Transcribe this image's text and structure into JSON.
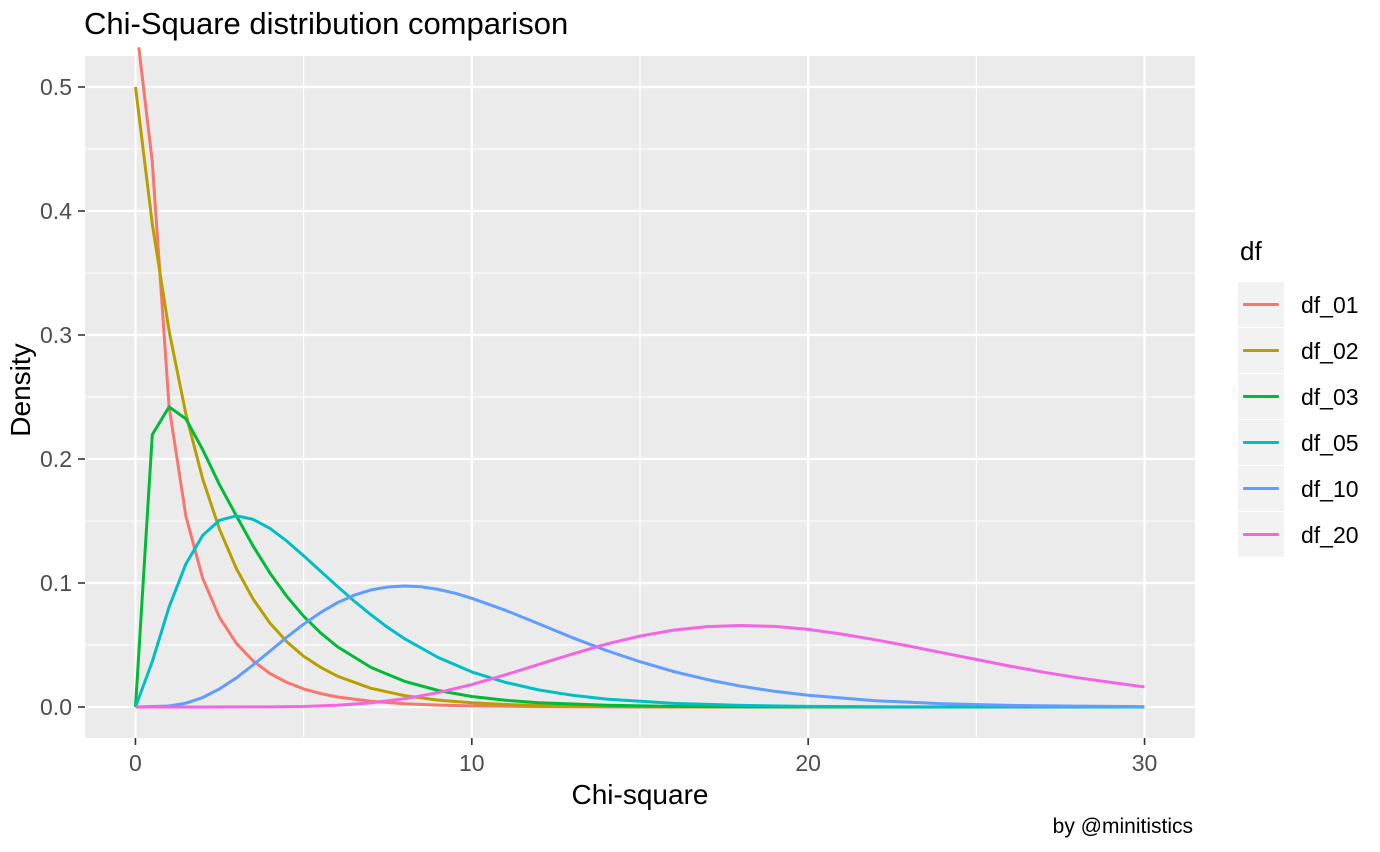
{
  "title": "Chi-Square distribution comparison",
  "caption": "by @minitistics",
  "axes": {
    "x_title": "Chi-square",
    "y_title": "Density"
  },
  "legend": {
    "title": "df",
    "items": [
      {
        "label": "df_01",
        "color": "#F8766D"
      },
      {
        "label": "df_02",
        "color": "#B79F00"
      },
      {
        "label": "df_03",
        "color": "#00BA38"
      },
      {
        "label": "df_05",
        "color": "#00BFC4"
      },
      {
        "label": "df_10",
        "color": "#619CFF"
      },
      {
        "label": "df_20",
        "color": "#F564E3"
      }
    ]
  },
  "style": {
    "panel_bg": "#EBEBEB",
    "grid_color": "#FFFFFF",
    "legend_key_bg": "#F2F2F2",
    "tick_label_color": "#4D4D4D",
    "tick_mark_color": "#333333",
    "text_color": "#000000"
  },
  "chart_data": {
    "type": "line",
    "title": "Chi-Square distribution comparison",
    "xlabel": "Chi-square",
    "ylabel": "Density",
    "xlim": [
      -1.5,
      31.5
    ],
    "ylim": [
      -0.025,
      0.525
    ],
    "grid": true,
    "legend_position": "right",
    "legend_title": "df",
    "x_ticks": [
      {
        "v": 0,
        "label": "0"
      },
      {
        "v": 10,
        "label": "10"
      },
      {
        "v": 20,
        "label": "20"
      },
      {
        "v": 30,
        "label": "30"
      }
    ],
    "y_ticks": [
      {
        "v": 0.0,
        "label": "0.0"
      },
      {
        "v": 0.1,
        "label": "0.1"
      },
      {
        "v": 0.2,
        "label": "0.2"
      },
      {
        "v": 0.3,
        "label": "0.3"
      },
      {
        "v": 0.4,
        "label": "0.4"
      },
      {
        "v": 0.5,
        "label": "0.5"
      }
    ],
    "x_minor": [
      5,
      15,
      25
    ],
    "y_minor": [
      0.05,
      0.15,
      0.25,
      0.35,
      0.45
    ],
    "series": [
      {
        "name": "df_01",
        "df": 1,
        "color": "#F8766D",
        "points": [
          [
            0.1,
            0.532
          ],
          [
            0.5,
            0.4394
          ],
          [
            1,
            0.242
          ],
          [
            1.5,
            0.1539
          ],
          [
            2,
            0.1038
          ],
          [
            2.5,
            0.0723
          ],
          [
            3,
            0.0514
          ],
          [
            3.5,
            0.0371
          ],
          [
            4,
            0.027
          ],
          [
            4.5,
            0.0198
          ],
          [
            5,
            0.0146
          ],
          [
            5.5,
            0.0109
          ],
          [
            6,
            0.0081
          ],
          [
            7,
            0.0046
          ],
          [
            8,
            0.0026
          ],
          [
            9,
            0.0015
          ],
          [
            10,
            0.0009
          ],
          [
            12,
            0.0003
          ],
          [
            14,
            0.0001
          ],
          [
            16,
            0
          ],
          [
            20,
            0
          ],
          [
            25,
            0
          ],
          [
            30,
            0
          ]
        ]
      },
      {
        "name": "df_02",
        "df": 2,
        "color": "#B79F00",
        "points": [
          [
            0,
            0.5
          ],
          [
            0.5,
            0.3894
          ],
          [
            1,
            0.3033
          ],
          [
            1.5,
            0.2362
          ],
          [
            2,
            0.1839
          ],
          [
            2.5,
            0.1433
          ],
          [
            3,
            0.1116
          ],
          [
            3.5,
            0.0869
          ],
          [
            4,
            0.0677
          ],
          [
            4.5,
            0.0527
          ],
          [
            5,
            0.041
          ],
          [
            5.5,
            0.032
          ],
          [
            6,
            0.0249
          ],
          [
            7,
            0.0151
          ],
          [
            8,
            0.0092
          ],
          [
            9,
            0.0056
          ],
          [
            10,
            0.0034
          ],
          [
            11,
            0.002
          ],
          [
            12,
            0.0012
          ],
          [
            14,
            0.0005
          ],
          [
            16,
            0.0002
          ],
          [
            18,
            0.0001
          ],
          [
            20,
            0
          ],
          [
            25,
            0
          ],
          [
            30,
            0
          ]
        ]
      },
      {
        "name": "df_03",
        "df": 3,
        "color": "#00BA38",
        "points": [
          [
            0,
            0
          ],
          [
            0.5,
            0.2197
          ],
          [
            1,
            0.242
          ],
          [
            1.5,
            0.2323
          ],
          [
            2,
            0.2076
          ],
          [
            2.5,
            0.1793
          ],
          [
            3,
            0.1541
          ],
          [
            3.5,
            0.1297
          ],
          [
            4,
            0.108
          ],
          [
            4.5,
            0.0892
          ],
          [
            5,
            0.0732
          ],
          [
            5.5,
            0.0598
          ],
          [
            6,
            0.0487
          ],
          [
            7,
            0.0319
          ],
          [
            8,
            0.0207
          ],
          [
            9,
            0.0133
          ],
          [
            10,
            0.0085
          ],
          [
            11,
            0.0054
          ],
          [
            12,
            0.0034
          ],
          [
            14,
            0.0014
          ],
          [
            16,
            0.0005
          ],
          [
            18,
            0.0002
          ],
          [
            20,
            0.0001
          ],
          [
            25,
            0
          ],
          [
            30,
            0
          ]
        ]
      },
      {
        "name": "df_05",
        "df": 5,
        "color": "#00BFC4",
        "points": [
          [
            0,
            0
          ],
          [
            0.5,
            0.0366
          ],
          [
            1,
            0.0807
          ],
          [
            1.5,
            0.1154
          ],
          [
            2,
            0.1384
          ],
          [
            2.5,
            0.1506
          ],
          [
            3,
            0.1542
          ],
          [
            3.5,
            0.1513
          ],
          [
            4,
            0.144
          ],
          [
            4.5,
            0.1338
          ],
          [
            5,
            0.122
          ],
          [
            5.5,
            0.1096
          ],
          [
            6,
            0.0973
          ],
          [
            6.5,
            0.0855
          ],
          [
            7,
            0.0744
          ],
          [
            7.5,
            0.0642
          ],
          [
            8,
            0.0551
          ],
          [
            9,
            0.0399
          ],
          [
            10,
            0.0283
          ],
          [
            11,
            0.0198
          ],
          [
            12,
            0.0137
          ],
          [
            13,
            0.0094
          ],
          [
            14,
            0.0064
          ],
          [
            16,
            0.0029
          ],
          [
            18,
            0.0013
          ],
          [
            20,
            0.0005
          ],
          [
            22,
            0.0002
          ],
          [
            25,
            0.0001
          ],
          [
            30,
            0
          ]
        ]
      },
      {
        "name": "df_10",
        "df": 10,
        "color": "#619CFF",
        "points": [
          [
            0,
            0
          ],
          [
            1,
            0.0008
          ],
          [
            1.5,
            0.0031
          ],
          [
            2,
            0.0077
          ],
          [
            2.5,
            0.0146
          ],
          [
            3,
            0.0235
          ],
          [
            3.5,
            0.034
          ],
          [
            4,
            0.0451
          ],
          [
            4.5,
            0.0563
          ],
          [
            5,
            0.0668
          ],
          [
            5.5,
            0.0761
          ],
          [
            6,
            0.084
          ],
          [
            6.5,
            0.0902
          ],
          [
            7,
            0.0944
          ],
          [
            7.5,
            0.0968
          ],
          [
            8,
            0.0976
          ],
          [
            8.5,
            0.0969
          ],
          [
            9,
            0.0948
          ],
          [
            9.5,
            0.0918
          ],
          [
            10,
            0.0877
          ],
          [
            11,
            0.078
          ],
          [
            12,
            0.067
          ],
          [
            13,
            0.0558
          ],
          [
            14,
            0.0456
          ],
          [
            15,
            0.0365
          ],
          [
            16,
            0.0286
          ],
          [
            17,
            0.0221
          ],
          [
            18,
            0.0168
          ],
          [
            19,
            0.0127
          ],
          [
            20,
            0.0095
          ],
          [
            22,
            0.0051
          ],
          [
            24,
            0.0027
          ],
          [
            26,
            0.0013
          ],
          [
            28,
            0.0007
          ],
          [
            30,
            0.0003
          ]
        ]
      },
      {
        "name": "df_20",
        "df": 20,
        "color": "#F564E3",
        "points": [
          [
            0,
            0
          ],
          [
            2,
            0
          ],
          [
            4,
            0.0001
          ],
          [
            5,
            0.0004
          ],
          [
            6,
            0.0014
          ],
          [
            7,
            0.0033
          ],
          [
            8,
            0.0066
          ],
          [
            9,
            0.0116
          ],
          [
            10,
            0.0181
          ],
          [
            11,
            0.026
          ],
          [
            12,
            0.0344
          ],
          [
            13,
            0.0428
          ],
          [
            14,
            0.0507
          ],
          [
            15,
            0.0572
          ],
          [
            16,
            0.062
          ],
          [
            17,
            0.0648
          ],
          [
            18,
            0.0657
          ],
          [
            19,
            0.065
          ],
          [
            20,
            0.0626
          ],
          [
            21,
            0.0588
          ],
          [
            22,
            0.0542
          ],
          [
            23,
            0.0491
          ],
          [
            24,
            0.0437
          ],
          [
            25,
            0.0383
          ],
          [
            26,
            0.033
          ],
          [
            27,
            0.0281
          ],
          [
            28,
            0.0236
          ],
          [
            29,
            0.0198
          ],
          [
            30,
            0.0162
          ]
        ]
      }
    ]
  }
}
